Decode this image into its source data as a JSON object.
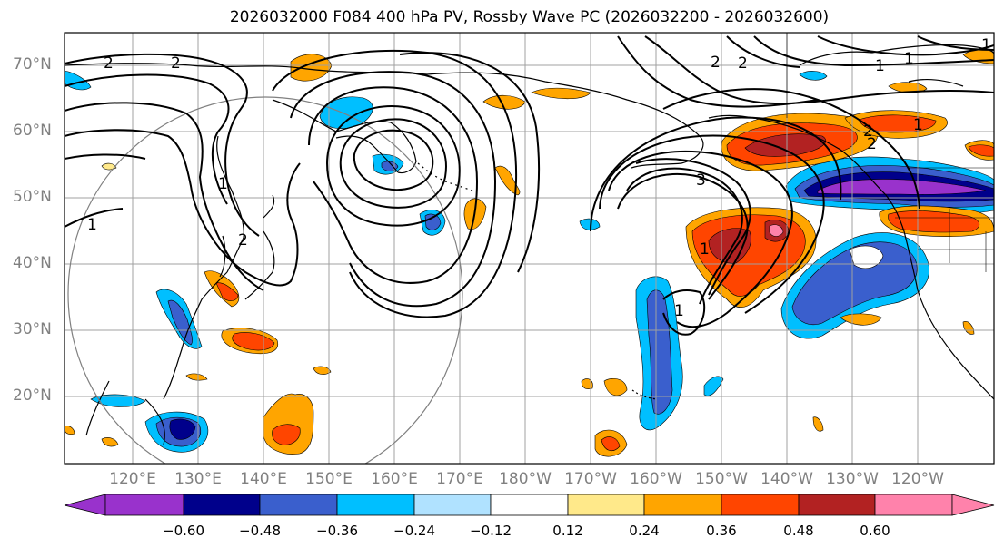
{
  "title": "2026032000 F084 400 hPa PV, Rossby Wave PC (2026032200 - 2026032600)",
  "lat_labels": [
    "70°N",
    "60°N",
    "50°N",
    "40°N",
    "30°N",
    "20°N"
  ],
  "lon_labels": [
    "120°E",
    "130°E",
    "140°E",
    "150°E",
    "160°E",
    "170°E",
    "180°W",
    "170°W",
    "160°W",
    "150°W",
    "140°W",
    "130°W",
    "120°W"
  ],
  "colorbar": {
    "ticks": [
      "−0.60",
      "−0.48",
      "−0.36",
      "−0.24",
      "−0.12",
      "0.12",
      "0.24",
      "0.36",
      "0.48",
      "0.60"
    ],
    "colors": [
      "#9932cc",
      "#00008b",
      "#3a5fcd",
      "#00bfff",
      "#b0e2ff",
      "#ffffff",
      "#ffe98a",
      "#ffa500",
      "#ff4500",
      "#b22222",
      "#ff82ab"
    ]
  },
  "contour_labels": [
    "2",
    "2",
    "1",
    "2",
    "2",
    "1",
    "2",
    "1",
    "1",
    "2",
    "2",
    "3",
    "1",
    "1",
    "1",
    "1"
  ],
  "colors": {
    "strong_neg": "#00008b",
    "purple": "#9932cc",
    "blue": "#3a5fcd",
    "cyan": "#00bfff",
    "light_blue": "#b0e2ff",
    "yellow": "#ffe98a",
    "orange": "#ffa500",
    "red": "#ff4500",
    "dark_red": "#b22222",
    "pink": "#ff82ab"
  }
}
